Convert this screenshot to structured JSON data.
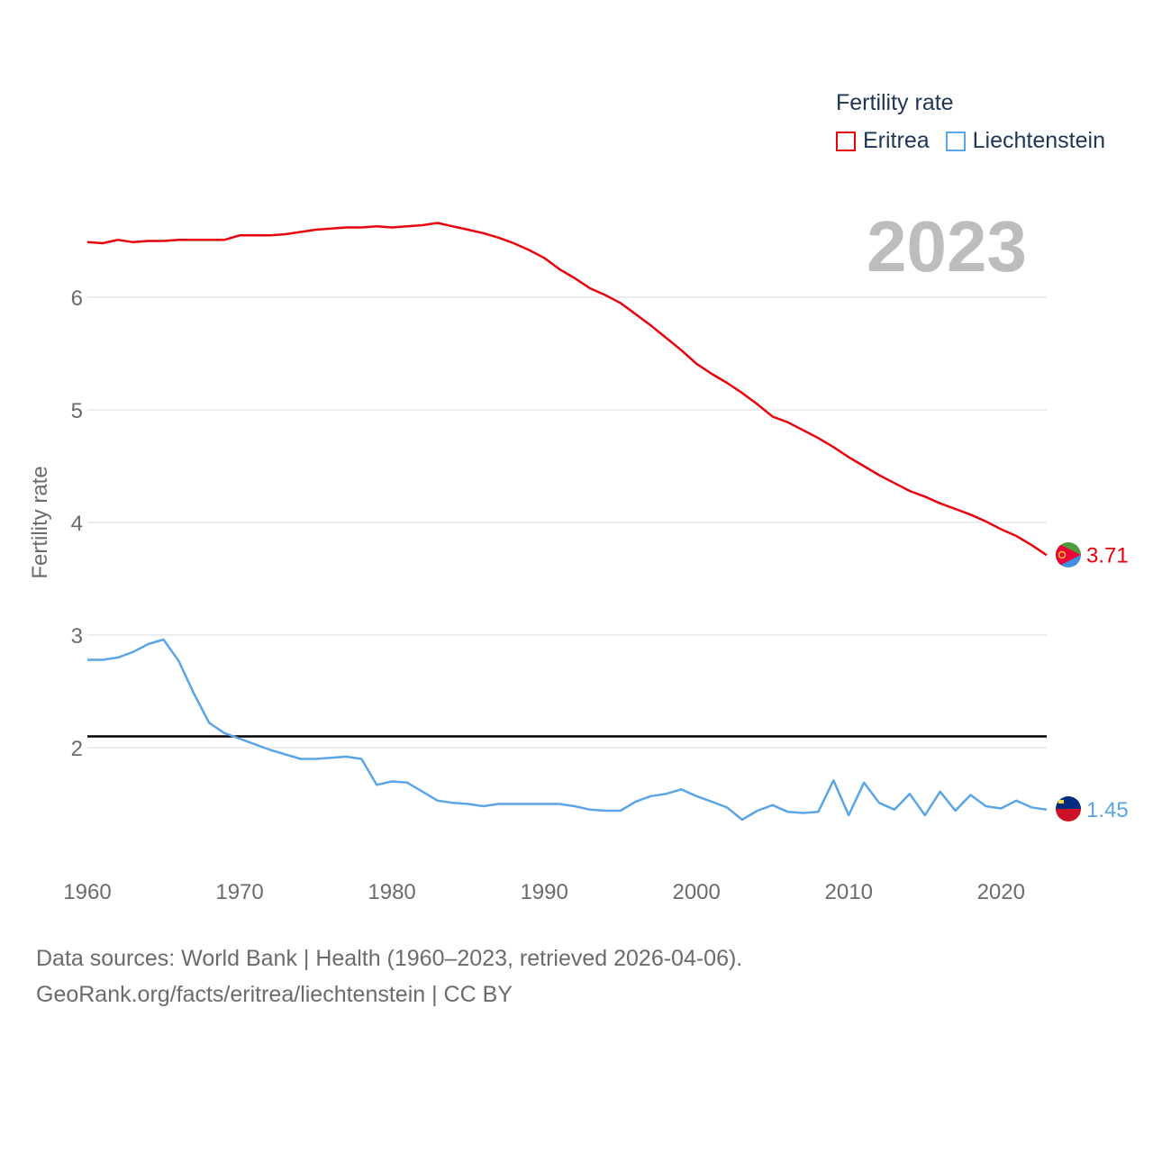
{
  "legend": {
    "title": "Fertility rate",
    "items": [
      {
        "label": "Eritrea",
        "color": "#e8000b"
      },
      {
        "label": "Liechtenstein",
        "color": "#5aa5e6"
      }
    ]
  },
  "year_label": "2023",
  "source": {
    "line1": "Data sources: World Bank | Health (1960–2023, retrieved 2026-04-06).",
    "line2": "GeoRank.org/facts/eritrea/liechtenstein | CC BY"
  },
  "chart_data": {
    "type": "line",
    "title": "Fertility rate",
    "xlabel": "",
    "ylabel": "Fertility rate",
    "xlim": [
      1960,
      2023
    ],
    "ylim": [
      1.0,
      7.2
    ],
    "xticks": [
      1960,
      1970,
      1980,
      1990,
      2000,
      2010,
      2020
    ],
    "yticks": [
      2,
      3,
      4,
      5,
      6
    ],
    "grid": true,
    "reference_line": {
      "y": 2.1,
      "color": "#000000"
    },
    "x": [
      1960,
      1961,
      1962,
      1963,
      1964,
      1965,
      1966,
      1967,
      1968,
      1969,
      1970,
      1971,
      1972,
      1973,
      1974,
      1975,
      1976,
      1977,
      1978,
      1979,
      1980,
      1981,
      1982,
      1983,
      1984,
      1985,
      1986,
      1987,
      1988,
      1989,
      1990,
      1991,
      1992,
      1993,
      1994,
      1995,
      1996,
      1997,
      1998,
      1999,
      2000,
      2001,
      2002,
      2003,
      2004,
      2005,
      2006,
      2007,
      2008,
      2009,
      2010,
      2011,
      2012,
      2013,
      2014,
      2015,
      2016,
      2017,
      2018,
      2019,
      2020,
      2021,
      2022,
      2023
    ],
    "series": [
      {
        "name": "Eritrea",
        "color": "#e8000b",
        "end_label": "3.71",
        "values": [
          6.49,
          6.48,
          6.51,
          6.49,
          6.5,
          6.5,
          6.51,
          6.51,
          6.51,
          6.51,
          6.55,
          6.55,
          6.55,
          6.56,
          6.58,
          6.6,
          6.61,
          6.62,
          6.62,
          6.63,
          6.62,
          6.63,
          6.64,
          6.66,
          6.63,
          6.6,
          6.57,
          6.53,
          6.48,
          6.42,
          6.35,
          6.25,
          6.17,
          6.08,
          6.02,
          5.95,
          5.85,
          5.75,
          5.64,
          5.53,
          5.41,
          5.32,
          5.24,
          5.15,
          5.05,
          4.94,
          4.89,
          4.82,
          4.75,
          4.67,
          4.58,
          4.5,
          4.42,
          4.35,
          4.28,
          4.23,
          4.17,
          4.12,
          4.07,
          4.01,
          3.94,
          3.88,
          3.8,
          3.71
        ]
      },
      {
        "name": "Liechtenstein",
        "color": "#5aa5e6",
        "end_label": "1.45",
        "values": [
          2.78,
          2.78,
          2.8,
          2.85,
          2.92,
          2.96,
          2.77,
          2.48,
          2.22,
          2.13,
          2.08,
          2.03,
          1.98,
          1.94,
          1.9,
          1.9,
          1.91,
          1.92,
          1.9,
          1.67,
          1.7,
          1.69,
          1.61,
          1.53,
          1.51,
          1.5,
          1.48,
          1.5,
          1.5,
          1.5,
          1.5,
          1.5,
          1.48,
          1.45,
          1.44,
          1.44,
          1.52,
          1.57,
          1.59,
          1.63,
          1.57,
          1.52,
          1.47,
          1.36,
          1.44,
          1.49,
          1.43,
          1.42,
          1.43,
          1.71,
          1.4,
          1.69,
          1.51,
          1.45,
          1.59,
          1.4,
          1.61,
          1.44,
          1.58,
          1.48,
          1.46,
          1.53,
          1.47,
          1.45
        ]
      }
    ]
  }
}
